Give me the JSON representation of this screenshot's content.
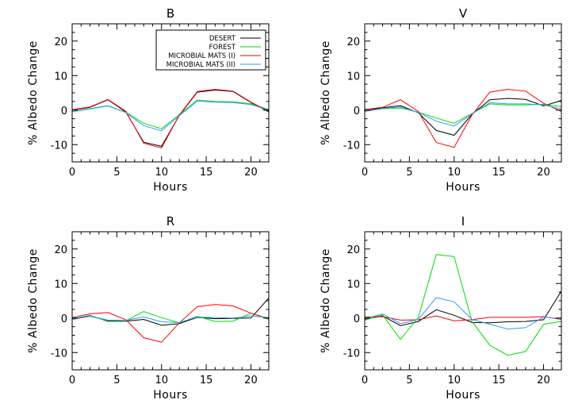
{
  "chart_data": [
    {
      "type": "line",
      "title": "B",
      "xlabel": "Hours",
      "ylabel": "% Albedo Change",
      "xlim": [
        0,
        22
      ],
      "ylim": [
        -15,
        25
      ],
      "xticks": [
        "0",
        "5",
        "10",
        "15",
        "20"
      ],
      "yticks": [
        "-10",
        "0",
        "10",
        "20"
      ],
      "grid": false,
      "legend_position": "top-right",
      "x": [
        0,
        2,
        4,
        6,
        8,
        10,
        12,
        14,
        16,
        18,
        20,
        22
      ],
      "series": [
        {
          "name": "DESERT",
          "color": "#000000",
          "values": [
            0,
            0.8,
            3.0,
            -0.5,
            -9.3,
            -10.5,
            -1.5,
            5.2,
            5.8,
            5.4,
            2.2,
            -0.5
          ]
        },
        {
          "name": "FOREST",
          "color": "#00dd00",
          "values": [
            -0.4,
            0.4,
            1.3,
            -0.6,
            -3.8,
            -5.4,
            -1.3,
            2.9,
            2.5,
            2.4,
            1.8,
            0.2
          ]
        },
        {
          "name": "MICROBIAL MATS (I)",
          "color": "#ff0000",
          "values": [
            0.1,
            0.9,
            3.1,
            -0.3,
            -9.6,
            -11.0,
            -1.4,
            5.4,
            6.0,
            5.5,
            2.3,
            -0.3
          ]
        },
        {
          "name": "MICROBIAL MATS (II)",
          "color": "#3399ff",
          "values": [
            -0.5,
            0.3,
            1.2,
            -0.7,
            -4.5,
            -6.0,
            -1.6,
            2.6,
            2.3,
            2.2,
            1.6,
            0.0
          ]
        }
      ]
    },
    {
      "type": "line",
      "title": "V",
      "xlabel": "Hours",
      "ylabel": "% Albedo Change",
      "xlim": [
        0,
        22
      ],
      "ylim": [
        -15,
        25
      ],
      "xticks": [
        "0",
        "5",
        "10",
        "15",
        "20"
      ],
      "yticks": [
        "-10",
        "0",
        "10",
        "20"
      ],
      "grid": false,
      "x": [
        0,
        2,
        4,
        6,
        8,
        10,
        12,
        14,
        16,
        18,
        20,
        22
      ],
      "series": [
        {
          "name": "DESERT",
          "color": "#000000",
          "values": [
            -0.2,
            0.7,
            1.3,
            -0.8,
            -5.9,
            -7.3,
            -1.2,
            3.0,
            3.4,
            3.1,
            1.2,
            2.8
          ]
        },
        {
          "name": "FOREST",
          "color": "#00dd00",
          "values": [
            -0.3,
            0.4,
            0.6,
            -0.6,
            -2.3,
            -3.8,
            -1.0,
            1.8,
            1.5,
            1.5,
            1.7,
            1.0
          ]
        },
        {
          "name": "MICROBIAL MATS (I)",
          "color": "#ff0000",
          "values": [
            0.2,
            0.8,
            3.0,
            -0.4,
            -9.4,
            -10.8,
            -1.4,
            5.2,
            6.0,
            5.5,
            2.0,
            -0.4
          ]
        },
        {
          "name": "MICROBIAL MATS (II)",
          "color": "#3399ff",
          "values": [
            -0.4,
            0.5,
            0.9,
            -0.7,
            -3.2,
            -4.6,
            -1.1,
            2.2,
            1.8,
            1.8,
            1.5,
            0.3
          ]
        }
      ]
    },
    {
      "type": "line",
      "title": "R",
      "xlabel": "Hours",
      "ylabel": "% Albedo Change",
      "xlim": [
        0,
        22
      ],
      "ylim": [
        -15,
        25
      ],
      "xticks": [
        "0",
        "5",
        "10",
        "15",
        "20"
      ],
      "yticks": [
        "-10",
        "0",
        "10",
        "20"
      ],
      "grid": false,
      "x": [
        0,
        2,
        4,
        6,
        8,
        10,
        12,
        14,
        16,
        18,
        20,
        22
      ],
      "series": [
        {
          "name": "DESERT",
          "color": "#000000",
          "values": [
            -0.3,
            0.7,
            -0.9,
            -0.9,
            -0.4,
            -2.1,
            -1.6,
            0.2,
            -0.2,
            -0.1,
            0.0,
            5.8
          ]
        },
        {
          "name": "FOREST",
          "color": "#00dd00",
          "values": [
            -0.4,
            0.5,
            -0.7,
            -0.8,
            1.9,
            0.1,
            -1.4,
            0.5,
            -1.0,
            -0.9,
            1.4,
            -0.4
          ]
        },
        {
          "name": "MICROBIAL MATS (I)",
          "color": "#ff0000",
          "values": [
            0.1,
            1.2,
            1.6,
            -0.5,
            -5.7,
            -7.0,
            -1.4,
            3.3,
            3.9,
            3.5,
            1.4,
            -0.2
          ]
        },
        {
          "name": "MICROBIAL MATS (II)",
          "color": "#3399ff",
          "values": [
            -0.5,
            0.6,
            -0.6,
            -0.7,
            0.3,
            -1.1,
            -1.3,
            0.3,
            0.1,
            0.0,
            0.6,
            0.1
          ]
        }
      ]
    },
    {
      "type": "line",
      "title": "I",
      "xlabel": "Hours",
      "ylabel": "% Albedo Change",
      "xlim": [
        0,
        22
      ],
      "ylim": [
        -15,
        25
      ],
      "xticks": [
        "0",
        "5",
        "10",
        "15",
        "20"
      ],
      "yticks": [
        "-10",
        "0",
        "10",
        "20"
      ],
      "grid": false,
      "x": [
        0,
        2,
        4,
        6,
        8,
        10,
        12,
        14,
        16,
        18,
        20,
        22
      ],
      "series": [
        {
          "name": "DESERT",
          "color": "#000000",
          "values": [
            -0.4,
            0.6,
            -2.2,
            -1.0,
            2.4,
            0.8,
            -1.3,
            -1.4,
            -1.1,
            -1.0,
            -0.5,
            7.8
          ]
        },
        {
          "name": "FOREST",
          "color": "#00dd00",
          "values": [
            -0.6,
            0.9,
            -6.2,
            0.2,
            18.4,
            17.8,
            -1.0,
            -7.9,
            -10.8,
            -9.7,
            -1.8,
            -1.0
          ]
        },
        {
          "name": "MICROBIAL MATS (I)",
          "color": "#ff0000",
          "values": [
            0.3,
            0.4,
            -0.6,
            -0.5,
            0.6,
            -0.8,
            -0.5,
            0.2,
            0.2,
            0.2,
            0.4,
            -0.4
          ]
        },
        {
          "name": "MICROBIAL MATS (II)",
          "color": "#3399ff",
          "values": [
            -0.2,
            1.2,
            -1.6,
            -0.4,
            5.9,
            4.7,
            -0.4,
            -1.8,
            -3.2,
            -2.8,
            0.3,
            -0.2
          ]
        }
      ]
    }
  ]
}
